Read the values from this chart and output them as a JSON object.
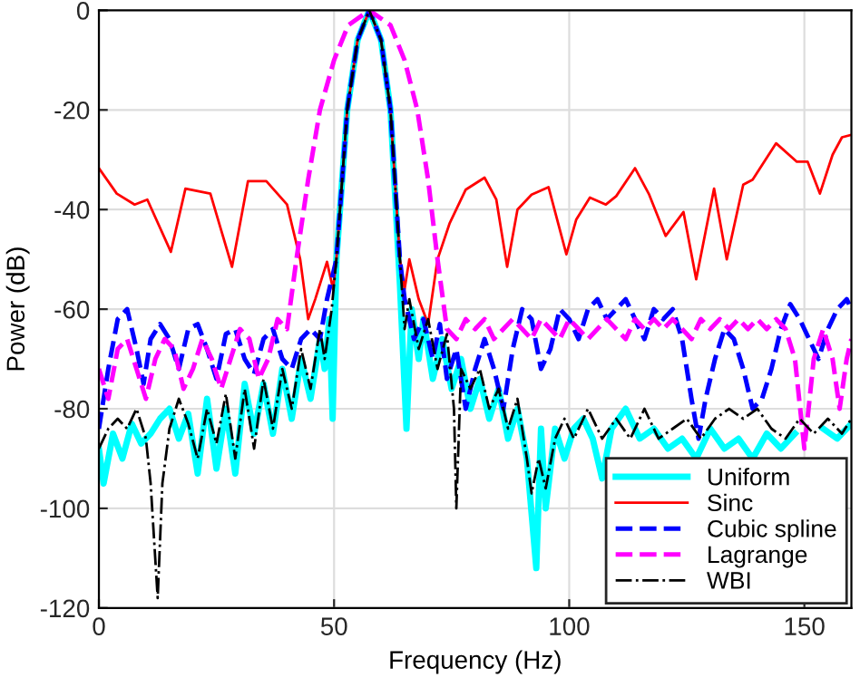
{
  "chart_data": {
    "type": "line",
    "xlabel": "Frequency (Hz)",
    "ylabel": "Power (dB)",
    "xlim": [
      0,
      160
    ],
    "xticks": [
      0,
      50,
      100,
      150
    ],
    "ylim": [
      -120,
      0
    ],
    "yticks": [
      0,
      -20,
      -40,
      -60,
      -80,
      -100,
      -120
    ],
    "grid": true,
    "legend": "bottom right",
    "series": [
      {
        "name": "Uniform",
        "color": "#00ffff",
        "line_style": "solid",
        "x": [
          0,
          1,
          3,
          5,
          7,
          9,
          11,
          13,
          15,
          17,
          19,
          21,
          23,
          25,
          27,
          29,
          31,
          33,
          35,
          37,
          39,
          41,
          43,
          45,
          47,
          48,
          49,
          49.7,
          50.5,
          52.8,
          55,
          57.5,
          60,
          62,
          64,
          65.4,
          66.5,
          68,
          69,
          71,
          73,
          75,
          77,
          79,
          81,
          83,
          85,
          87,
          89,
          91,
          93,
          94,
          95,
          97,
          99,
          101,
          103,
          105,
          107,
          109,
          112,
          115,
          118,
          121,
          124,
          127,
          130,
          133,
          136,
          139,
          142,
          145,
          148,
          151,
          154,
          157,
          160
        ],
        "values": [
          -88,
          -95,
          -85,
          -90,
          -83,
          -87,
          -85,
          -82,
          -80,
          -86,
          -81,
          -93,
          -78,
          -92,
          -80,
          -93,
          -75,
          -85,
          -75,
          -85,
          -72,
          -82,
          -70,
          -78,
          -66,
          -72,
          -62,
          -82,
          -50,
          -20,
          -6,
          0,
          -6,
          -20,
          -55,
          -84,
          -60,
          -70,
          -62,
          -74,
          -66,
          -76,
          -70,
          -80,
          -74,
          -82,
          -76,
          -86,
          -80,
          -90,
          -112,
          -84,
          -100,
          -84,
          -90,
          -84,
          -82,
          -86,
          -94,
          -84,
          -80,
          -86,
          -84,
          -88,
          -86,
          -90,
          -84,
          -88,
          -86,
          -90,
          -85,
          -88,
          -85,
          null,
          -84,
          -86,
          -83
        ]
      },
      {
        "name": "Sinc",
        "color": "#ff0000",
        "line_style": "solid",
        "x": [
          0,
          3.8,
          7.6,
          10.3,
          15.3,
          18.4,
          23.7,
          28.3,
          31.7,
          35.6,
          40,
          42.8,
          44.5,
          46,
          48.5,
          49.8,
          50.5,
          52.8,
          55,
          57.5,
          60,
          62,
          64,
          65,
          66,
          68,
          70,
          72,
          74.6,
          78,
          82,
          84.5,
          86.8,
          89,
          92,
          95.6,
          99.4,
          101.5,
          104.4,
          107.8,
          110,
          114,
          117,
          120.5,
          124.3,
          127,
          130.8,
          133.5,
          137,
          139,
          144,
          148.4,
          150.7,
          153.3,
          156,
          158,
          160
        ],
        "values": [
          -31.7,
          -36.8,
          -39,
          -38,
          -48.5,
          -35.8,
          -36.8,
          -51.5,
          -34.3,
          -34.3,
          -39,
          -50,
          -62,
          -58,
          -50.5,
          -56,
          -50,
          -20,
          -6,
          0,
          -6,
          -20,
          -50,
          -56,
          -50,
          -58,
          -63,
          -50,
          -42.7,
          -36,
          -33.6,
          -38,
          -51.5,
          -40,
          -37,
          -35.5,
          -49,
          -42,
          -37.6,
          -39,
          -37.3,
          -31.7,
          -37,
          -45.3,
          -40.5,
          -54,
          -35.8,
          -50,
          -35,
          -34,
          -26.7,
          -30.4,
          -30.4,
          -36.8,
          -29,
          -25.5,
          -25
        ]
      },
      {
        "name": "Cubic spline",
        "color": "#0000ff",
        "line_style": "dashed",
        "x": [
          0,
          2,
          4,
          6,
          8,
          9.5,
          11,
          13,
          15,
          17,
          19,
          21,
          23,
          25,
          27,
          29,
          31,
          33,
          35,
          37,
          39,
          41,
          43,
          45,
          47,
          48.5,
          50.5,
          52.8,
          55,
          57.5,
          60,
          62,
          64,
          65,
          67,
          69,
          71,
          72.5,
          74,
          76,
          78,
          80,
          82,
          84,
          86,
          88,
          90,
          92,
          94,
          96,
          98,
          100,
          102,
          104,
          106,
          108,
          110,
          112,
          114,
          116,
          118,
          120,
          122,
          124,
          126,
          127.5,
          129,
          131,
          133,
          135,
          137,
          139,
          141,
          143,
          145,
          147,
          149,
          151,
          153,
          155,
          157,
          159,
          160
        ],
        "values": [
          -84,
          -72,
          -62,
          -60,
          -68,
          -75,
          -66,
          -63,
          -66,
          -72,
          -64,
          -63,
          -68,
          -74,
          -65,
          -64,
          -70,
          -73,
          -66,
          -64,
          -70,
          -72,
          -66,
          -64,
          -66,
          -58,
          -50,
          -20,
          -6,
          0,
          -6,
          -20,
          -50,
          -58,
          -66,
          -62,
          -70,
          -63,
          -74,
          -68,
          -80,
          -72,
          -66,
          -72,
          -80,
          -68,
          -60,
          -62,
          -72,
          -68,
          -60,
          -62,
          -66,
          -60,
          -58,
          -62,
          -60,
          -58,
          -62,
          -66,
          -60,
          -62,
          -60,
          -66,
          -78,
          -86,
          -78,
          -70,
          -64,
          -66,
          -72,
          -80,
          -78,
          -72,
          -64,
          -59,
          -62,
          -66,
          -70,
          -64,
          -60,
          -58,
          -60
        ]
      },
      {
        "name": "Lagrange",
        "color": "#ff00ff",
        "line_style": "dashed",
        "x": [
          0,
          2,
          4,
          6,
          8,
          10,
          12,
          14,
          16,
          18,
          20,
          22,
          24,
          26,
          28,
          30,
          32,
          34,
          36,
          38,
          40,
          42,
          44.5,
          47,
          50,
          53,
          57.5,
          62,
          65,
          67.7,
          70,
          72,
          74,
          76,
          78,
          80,
          82,
          84,
          86,
          88,
          90,
          92,
          94,
          96,
          98,
          100,
          102,
          104,
          106,
          108,
          110,
          112,
          114,
          116,
          118,
          120,
          122,
          124,
          126,
          128,
          130,
          132,
          134,
          136,
          138,
          140,
          142,
          144,
          146,
          148,
          150,
          152,
          154,
          156,
          157.5,
          159,
          160
        ],
        "values": [
          -72,
          -78,
          -68,
          -66,
          -72,
          -78,
          -70,
          -66,
          -68,
          -76,
          -72,
          -66,
          -70,
          -76,
          -70,
          -64,
          -66,
          -74,
          -70,
          -62,
          -64,
          -50,
          -34,
          -20,
          -10,
          -3,
          0,
          -3,
          -10,
          -20,
          -34,
          -50,
          -64,
          -66,
          -62,
          -64,
          -62,
          -66,
          -64,
          -62,
          -64,
          -66,
          -62,
          -64,
          -66,
          -62,
          -64,
          -66,
          -64,
          -62,
          -64,
          -66,
          -62,
          -64,
          -62,
          -64,
          -62,
          -64,
          -66,
          -62,
          -64,
          -62,
          -64,
          -62,
          -64,
          -62,
          -64,
          -62,
          -64,
          -70,
          -88,
          -70,
          -64,
          -70,
          -80,
          -70,
          -66
        ]
      },
      {
        "name": "WBI",
        "color": "#000000",
        "line_style": "dashdot",
        "x": [
          0,
          2,
          4,
          6,
          8,
          10,
          11,
          12.5,
          13.5,
          15,
          17,
          19,
          21,
          23,
          25,
          27,
          29,
          31,
          33,
          35,
          37,
          39,
          41,
          43,
          45,
          47,
          48,
          49.5,
          50.5,
          52.8,
          55,
          57.5,
          60,
          62,
          64,
          65,
          66,
          68,
          70,
          72,
          74,
          75.5,
          76,
          77,
          79,
          81,
          83,
          85,
          87,
          89,
          91,
          92,
          93.5,
          95,
          97,
          99,
          101,
          104,
          107,
          110,
          113,
          116,
          119,
          122,
          125,
          128,
          131,
          134,
          137,
          140,
          143,
          146,
          149,
          152,
          155,
          158,
          160
        ],
        "values": [
          -88,
          -84,
          -82,
          -84,
          -80,
          -86,
          -95,
          -118,
          -95,
          -84,
          -78,
          -83,
          -90,
          -80,
          -87,
          -77,
          -90,
          -76,
          -88,
          -74,
          -84,
          -72,
          -80,
          -68,
          -76,
          -64,
          -70,
          -60,
          -50,
          -20,
          -6,
          0,
          -6,
          -20,
          -50,
          -64,
          -58,
          -68,
          -62,
          -72,
          -65,
          -80,
          -100,
          -72,
          -76,
          -72,
          -80,
          -76,
          -84,
          -78,
          -90,
          -97,
          -90,
          -96,
          -86,
          -82,
          -86,
          -80,
          -86,
          -82,
          -86,
          -80,
          -86,
          -84,
          -82,
          -86,
          -82,
          -80,
          -82,
          -80,
          -84,
          -86,
          -82,
          -85,
          -82,
          -85,
          -82
        ]
      }
    ]
  }
}
